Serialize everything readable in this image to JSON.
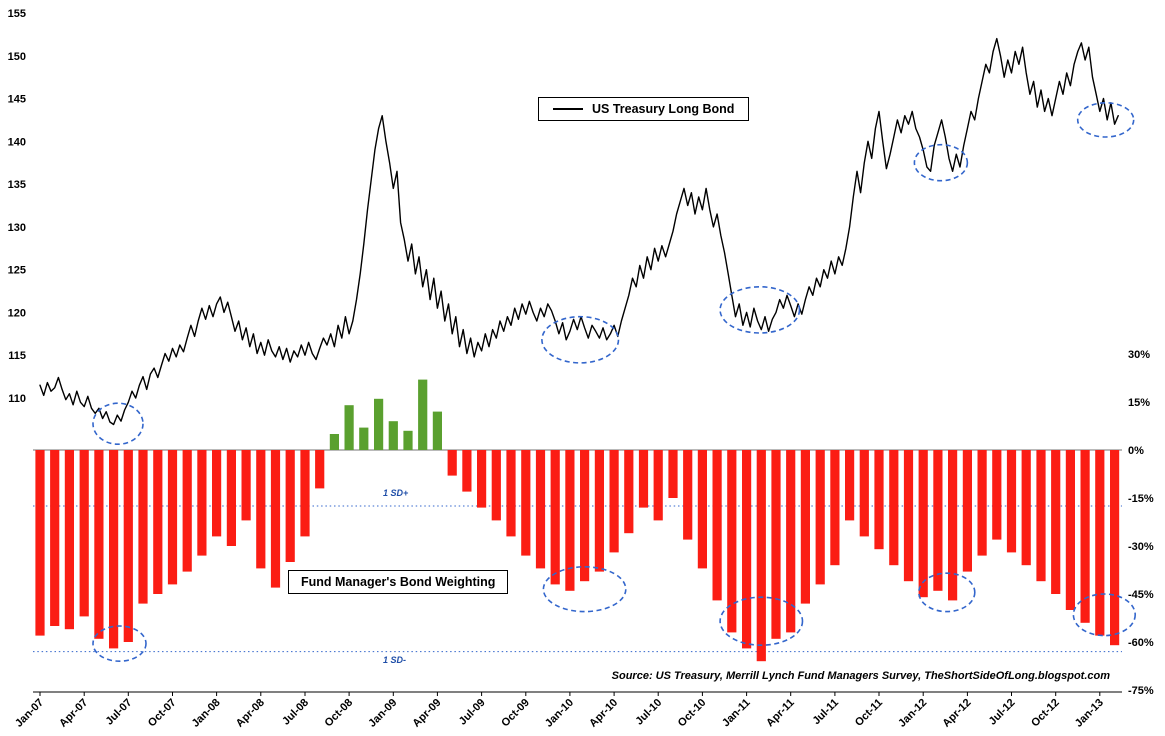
{
  "chart_data": {
    "type": "combo-line-bar",
    "x_axis": {
      "tick_every_months": 3,
      "tick_labels": [
        "Jan-07",
        "Apr-07",
        "Jul-07",
        "Oct-07",
        "Jan-08",
        "Apr-08",
        "Jul-08",
        "Oct-08",
        "Jan-09",
        "Apr-09",
        "Jul-09",
        "Oct-09",
        "Jan-10",
        "Apr-10",
        "Jul-10",
        "Oct-10",
        "Jan-11",
        "Apr-11",
        "Jul-11",
        "Oct-11",
        "Jan-12",
        "Apr-12",
        "Jul-12",
        "Oct-12",
        "Jan-13"
      ]
    },
    "left_axis": {
      "min": 110,
      "max": 155,
      "tick_step": 5,
      "ticks": [
        {
          "value": 155,
          "label": "155"
        },
        {
          "value": 150,
          "label": "150"
        },
        {
          "value": 145,
          "label": "145"
        },
        {
          "value": 140,
          "label": "140"
        },
        {
          "value": 135,
          "label": "135"
        },
        {
          "value": 130,
          "label": "130"
        },
        {
          "value": 125,
          "label": "125"
        },
        {
          "value": 120,
          "label": "120"
        },
        {
          "value": 115,
          "label": "115"
        },
        {
          "value": 110,
          "label": "110"
        }
      ]
    },
    "right_axis": {
      "min": -75,
      "max": 30,
      "tick_step": 15,
      "unit": "%",
      "ticks": [
        {
          "value": 30,
          "label": "30%"
        },
        {
          "value": 15,
          "label": "15%"
        },
        {
          "value": 0,
          "label": "0%"
        },
        {
          "value": -15,
          "label": "-15%"
        },
        {
          "value": -30,
          "label": "-30%"
        },
        {
          "value": -45,
          "label": "-45%"
        },
        {
          "value": -60,
          "label": "-60%"
        },
        {
          "value": -75,
          "label": "-75%"
        }
      ]
    },
    "line_series": {
      "name": "US Treasury Long Bond",
      "color": "#000000",
      "axis": "left",
      "points_per_month": 4,
      "values": [
        111.5,
        110.3,
        111.8,
        110.8,
        111.2,
        112.4,
        111.0,
        109.8,
        110.5,
        109.2,
        110.8,
        109.5,
        109.0,
        110.2,
        108.8,
        108.2,
        108.8,
        107.6,
        108.4,
        107.2,
        106.9,
        108.0,
        107.3,
        108.6,
        109.5,
        110.8,
        110.0,
        111.5,
        112.5,
        111.0,
        112.8,
        113.5,
        112.4,
        113.8,
        115.2,
        114.3,
        115.8,
        114.8,
        116.2,
        115.4,
        117.0,
        118.5,
        117.2,
        119.0,
        120.5,
        119.2,
        120.8,
        119.5,
        121.0,
        121.8,
        120.0,
        121.2,
        119.5,
        117.8,
        119.0,
        116.8,
        118.2,
        116.0,
        117.5,
        115.2,
        116.5,
        115.0,
        116.8,
        115.5,
        114.8,
        116.0,
        114.5,
        115.8,
        114.2,
        115.5,
        114.8,
        116.2,
        115.0,
        116.5,
        115.2,
        114.5,
        115.8,
        117.0,
        116.2,
        117.5,
        116.0,
        118.5,
        117.0,
        119.5,
        117.5,
        119.0,
        121.5,
        124.5,
        128.0,
        132.0,
        135.5,
        139.0,
        141.5,
        143.0,
        140.0,
        137.5,
        134.5,
        136.5,
        130.5,
        128.5,
        126.0,
        128.0,
        124.5,
        126.5,
        123.0,
        125.0,
        121.5,
        124.0,
        120.5,
        122.5,
        119.0,
        121.0,
        117.5,
        119.5,
        116.0,
        118.0,
        115.2,
        117.0,
        114.8,
        116.5,
        115.5,
        117.5,
        116.0,
        118.0,
        117.0,
        119.0,
        117.8,
        119.5,
        118.5,
        120.5,
        119.2,
        121.0,
        119.8,
        121.3,
        120.0,
        119.0,
        120.5,
        119.5,
        121.0,
        120.2,
        119.0,
        117.5,
        118.8,
        116.8,
        117.8,
        119.2,
        118.0,
        119.5,
        118.2,
        117.0,
        118.5,
        117.8,
        117.0,
        118.2,
        116.8,
        117.5,
        118.5,
        117.2,
        119.0,
        120.5,
        122.0,
        124.0,
        123.0,
        125.5,
        124.0,
        126.5,
        125.0,
        127.5,
        126.0,
        127.8,
        126.5,
        128.0,
        129.5,
        131.5,
        133.0,
        134.5,
        132.5,
        134.0,
        131.5,
        133.5,
        132.0,
        134.5,
        132.0,
        130.0,
        131.5,
        129.0,
        127.0,
        124.5,
        122.0,
        119.5,
        121.0,
        118.5,
        120.0,
        118.3,
        120.5,
        119.0,
        118.0,
        119.5,
        117.8,
        119.2,
        120.0,
        121.5,
        120.5,
        122.0,
        120.8,
        119.5,
        121.0,
        119.8,
        121.5,
        123.0,
        122.0,
        124.0,
        123.0,
        125.0,
        124.0,
        126.0,
        124.5,
        126.5,
        125.5,
        127.5,
        130.0,
        133.5,
        136.5,
        134.0,
        137.5,
        140.0,
        138.0,
        141.5,
        143.5,
        140.0,
        136.8,
        138.5,
        140.5,
        142.5,
        141.0,
        143.0,
        142.0,
        143.5,
        141.5,
        140.5,
        139.0,
        137.0,
        136.5,
        139.5,
        141.0,
        142.5,
        140.5,
        138.0,
        136.5,
        138.5,
        137.0,
        139.5,
        141.5,
        143.5,
        142.5,
        145.0,
        147.0,
        149.0,
        148.0,
        150.5,
        152.0,
        150.0,
        147.5,
        149.5,
        148.0,
        150.5,
        149.0,
        151.0,
        148.0,
        145.5,
        147.0,
        144.0,
        146.0,
        143.5,
        145.0,
        143.0,
        145.0,
        147.0,
        145.5,
        148.0,
        146.5,
        149.0,
        150.5,
        151.5,
        149.5,
        151.0,
        147.5,
        145.5,
        143.5,
        145.0,
        142.5,
        144.5,
        142.0,
        143.0
      ]
    },
    "bar_series": {
      "name": "Fund Manager's Bond Weighting",
      "axis": "right",
      "unit": "%",
      "color_positive": "#5aa02f",
      "color_negative": "#fb1d14",
      "monthly_values": [
        -58,
        -55,
        -56,
        -52,
        -59,
        -62,
        -60,
        -48,
        -45,
        -42,
        -38,
        -33,
        -27,
        -30,
        -22,
        -37,
        -43,
        -35,
        -27,
        -12,
        5,
        14,
        7,
        16,
        9,
        6,
        22,
        12,
        -8,
        -13,
        -18,
        -22,
        -27,
        -33,
        -37,
        -42,
        -44,
        -41,
        -38,
        -32,
        -26,
        -18,
        -22,
        -15,
        -28,
        -37,
        -47,
        -57,
        -62,
        -66,
        -59,
        -57,
        -48,
        -42,
        -36,
        -22,
        -27,
        -31,
        -36,
        -41,
        -46,
        -44,
        -47,
        -38,
        -33,
        -28,
        -32,
        -36,
        -41,
        -45,
        -50,
        -54,
        -58,
        -61
      ]
    },
    "sd_lines": [
      {
        "label": "1 SD+",
        "value": -17.5
      },
      {
        "label": "1 SD-",
        "value": -63
      }
    ],
    "annotations": {
      "circle_color": "#3366cc",
      "circles": [
        {
          "on": "line",
          "month": 5.3,
          "value": 107.0,
          "rx_months": 1.7,
          "ry": 2.4
        },
        {
          "on": "line",
          "month": 36.7,
          "value": 116.8,
          "rx_months": 2.6,
          "ry": 2.7
        },
        {
          "on": "line",
          "month": 48.9,
          "value": 120.3,
          "rx_months": 2.7,
          "ry": 2.7
        },
        {
          "on": "line",
          "month": 61.2,
          "value": 137.5,
          "rx_months": 1.8,
          "ry": 2.1
        },
        {
          "on": "line",
          "month": 72.4,
          "value": 142.5,
          "rx_months": 1.9,
          "ry": 2.0
        },
        {
          "on": "bars",
          "month": 5.4,
          "value": -60.5,
          "rx_months": 1.8,
          "ry": 5.5
        },
        {
          "on": "bars",
          "month": 37.0,
          "value": -43.5,
          "rx_months": 2.8,
          "ry": 7.0
        },
        {
          "on": "bars",
          "month": 49.0,
          "value": -53.5,
          "rx_months": 2.8,
          "ry": 7.5
        },
        {
          "on": "bars",
          "month": 61.6,
          "value": -44.5,
          "rx_months": 1.9,
          "ry": 6.0
        },
        {
          "on": "bars",
          "month": 72.3,
          "value": -51.5,
          "rx_months": 2.1,
          "ry": 6.5
        }
      ]
    },
    "source_note": "Source: US Treasury, Merrill Lynch Fund Managers Survey, TheShortSideOfLong.blogspot.com"
  }
}
